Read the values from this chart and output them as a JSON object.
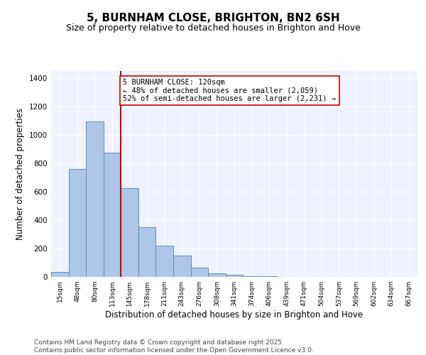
{
  "title": "5, BURNHAM CLOSE, BRIGHTON, BN2 6SH",
  "subtitle": "Size of property relative to detached houses in Brighton and Hove",
  "xlabel": "Distribution of detached houses by size in Brighton and Hove",
  "ylabel": "Number of detached properties",
  "categories": [
    "15sqm",
    "48sqm",
    "80sqm",
    "113sqm",
    "145sqm",
    "178sqm",
    "211sqm",
    "243sqm",
    "276sqm",
    "308sqm",
    "341sqm",
    "374sqm",
    "406sqm",
    "439sqm",
    "471sqm",
    "504sqm",
    "537sqm",
    "569sqm",
    "602sqm",
    "634sqm",
    "667sqm"
  ],
  "bar_values": [
    37,
    762,
    1097,
    873,
    625,
    350,
    220,
    148,
    65,
    25,
    14,
    7,
    3,
    0,
    0,
    0,
    0,
    0,
    0,
    0,
    0
  ],
  "bar_color": "#aec6e8",
  "bar_edge_color": "#5a8fc0",
  "vline_x": 3.48,
  "vline_color": "#cc0000",
  "annotation_text": "5 BURNHAM CLOSE: 120sqm\n← 48% of detached houses are smaller (2,059)\n52% of semi-detached houses are larger (2,231) →",
  "annotation_box_color": "#cc0000",
  "ylim": [
    0,
    1450
  ],
  "yticks": [
    0,
    200,
    400,
    600,
    800,
    1000,
    1200,
    1400
  ],
  "bg_color": "#eef2ff",
  "footer": "Contains HM Land Registry data © Crown copyright and database right 2025.\nContains public sector information licensed under the Open Government Licence v3.0.",
  "title_fontsize": 11,
  "subtitle_fontsize": 9,
  "xlabel_fontsize": 8.5,
  "ylabel_fontsize": 8.5,
  "annotation_fontsize": 7.5,
  "footer_fontsize": 6.5
}
